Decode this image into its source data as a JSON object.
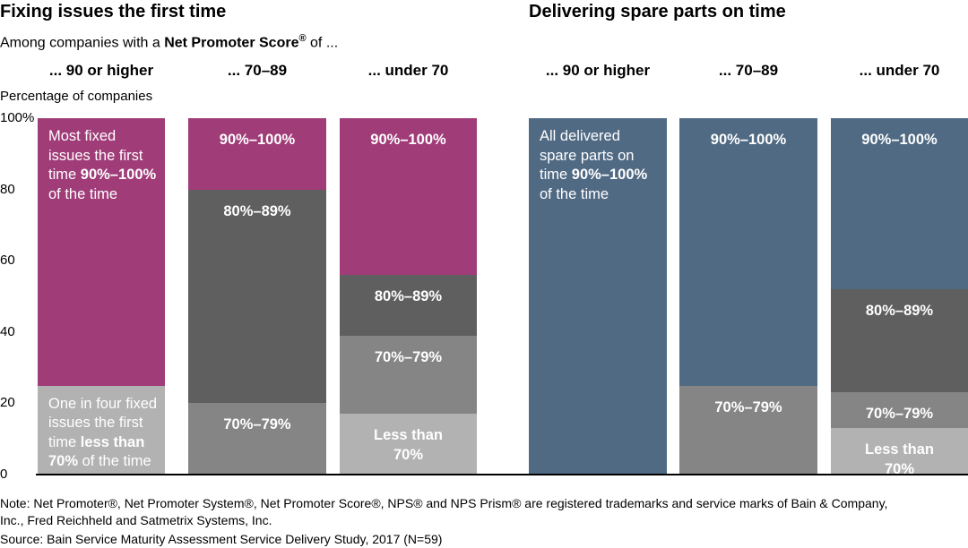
{
  "left_title": "Fixing issues the first time",
  "right_title": "Delivering spare parts on time",
  "subtitle": [
    {
      "text": "Among companies with a ",
      "bold": false
    },
    {
      "text": "Net Promoter Score",
      "bold": true
    },
    {
      "text": "®",
      "bold": true,
      "sup": true
    },
    {
      "text": " of ...",
      "bold": false
    }
  ],
  "notes": {
    "note_line1": "Note: Net Promoter®, Net Promoter System®, Net Promoter Score®, NPS® and NPS Prism® are registered trademarks and service marks of Bain & Company,",
    "note_line2": "Inc., Fred Reichheld and Satmetrix Systems, Inc.",
    "source": "Source: Bain Service Maturity Assessment Service Delivery Study, 2017 (N=59)"
  },
  "colors": {
    "magenta": "#a03c78",
    "blue": "#506a84",
    "dark": "#5f5f5f",
    "mid": "#858585",
    "light": "#b2b2b2"
  },
  "chart_data": {
    "type": "bar",
    "stacked": true,
    "ylabel": "Percentage of companies",
    "ylim": [
      0,
      100
    ],
    "yticks": [
      "0",
      "20",
      "40",
      "60",
      "80",
      "100%"
    ],
    "categories": [
      "... 90 or higher",
      "... 70–89",
      "... under 70",
      "... 90 or higher",
      "... 70–89",
      "... under 70"
    ],
    "panels": [
      "Fixing issues the first time",
      "Delivering spare parts on time"
    ],
    "bars": [
      {
        "group": "... 90 or higher",
        "panel": 0,
        "segments": [
          {
            "series": "Less than 70%",
            "value": 25,
            "color": "light",
            "rich": [
              {
                "text": "One in four fixed issues the first time ",
                "bold": false
              },
              {
                "text": "less than 70%",
                "bold": true
              },
              {
                "text": " of the time",
                "bold": false
              }
            ]
          },
          {
            "series": "90%–100%",
            "value": 75,
            "color": "magenta",
            "rich": [
              {
                "text": "Most fixed issues the first time ",
                "bold": false
              },
              {
                "text": "90%–100%",
                "bold": true
              },
              {
                "text": " of the time",
                "bold": false
              }
            ]
          }
        ]
      },
      {
        "group": "... 70–89",
        "panel": 0,
        "segments": [
          {
            "series": "70%–79%",
            "value": 20,
            "color": "mid",
            "label": "70%–79%"
          },
          {
            "series": "80%–89%",
            "value": 60,
            "color": "dark",
            "label": "80%–89%"
          },
          {
            "series": "90%–100%",
            "value": 20,
            "color": "magenta",
            "label": "90%–100%"
          }
        ]
      },
      {
        "group": "... under 70",
        "panel": 0,
        "segments": [
          {
            "series": "Less than 70%",
            "value": 17,
            "color": "light",
            "label": "Less than 70%"
          },
          {
            "series": "70%–79%",
            "value": 22,
            "color": "mid",
            "label": "70%–79%"
          },
          {
            "series": "80%–89%",
            "value": 17,
            "color": "dark",
            "label": "80%–89%"
          },
          {
            "series": "90%–100%",
            "value": 44,
            "color": "magenta",
            "label": "90%–100%"
          }
        ]
      },
      {
        "group": "... 90 or higher",
        "panel": 1,
        "segments": [
          {
            "series": "90%–100%",
            "value": 100,
            "color": "blue",
            "rich": [
              {
                "text": "All delivered spare parts on time ",
                "bold": false
              },
              {
                "text": "90%–100%",
                "bold": true
              },
              {
                "text": " of the time",
                "bold": false
              }
            ]
          }
        ]
      },
      {
        "group": "... 70–89",
        "panel": 1,
        "segments": [
          {
            "series": "70%–79%",
            "value": 25,
            "color": "mid",
            "label": "70%–79%"
          },
          {
            "series": "90%–100%",
            "value": 75,
            "color": "blue",
            "label": "90%–100%"
          }
        ]
      },
      {
        "group": "... under 70",
        "panel": 1,
        "segments": [
          {
            "series": "Less than 70%",
            "value": 13,
            "color": "light",
            "label": "Less than 70%"
          },
          {
            "series": "70%–79%",
            "value": 10,
            "color": "mid",
            "label": "70%–79%"
          },
          {
            "series": "80%–89%",
            "value": 29,
            "color": "dark",
            "label": "80%–89%"
          },
          {
            "series": "90%–100%",
            "value": 48,
            "color": "blue",
            "label": "90%–100%"
          }
        ]
      }
    ]
  }
}
